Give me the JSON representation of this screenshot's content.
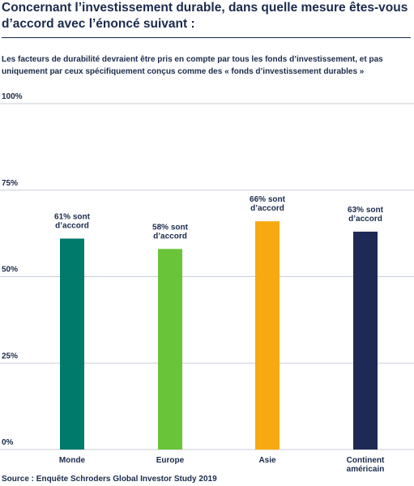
{
  "chart_data": {
    "type": "bar",
    "title": "Concernant l’investissement durable, dans quelle mesure êtes-vous d’accord avec l’énoncé suivant :",
    "subtitle": "Les facteurs de durabilité devraient être pris en compte par tous les fonds d’investissement, et pas uniquement par ceux spécifiquement conçus comme des « fonds d’investissement durables »",
    "categories": [
      [
        "Monde"
      ],
      [
        "Europe"
      ],
      [
        "Asie"
      ],
      [
        "Continent",
        "américain"
      ]
    ],
    "values": [
      61,
      58,
      66,
      63
    ],
    "data_labels": [
      [
        "61% sont",
        "d’accord"
      ],
      [
        "58% sont",
        "d’accord"
      ],
      [
        "66% sont",
        "d’accord"
      ],
      [
        "63% sont",
        "d’accord"
      ]
    ],
    "colors": [
      "#007a6b",
      "#6ac43a",
      "#f7a90f",
      "#1e2a55"
    ],
    "yticks": [
      0,
      25,
      50,
      75,
      100
    ],
    "ytick_labels": [
      "0%",
      "25%",
      "50%",
      "75%",
      "100%"
    ],
    "ylim": [
      0,
      100
    ],
    "grid": true,
    "source": "Source : Enquête Schroders Global Investor Study 2019"
  }
}
